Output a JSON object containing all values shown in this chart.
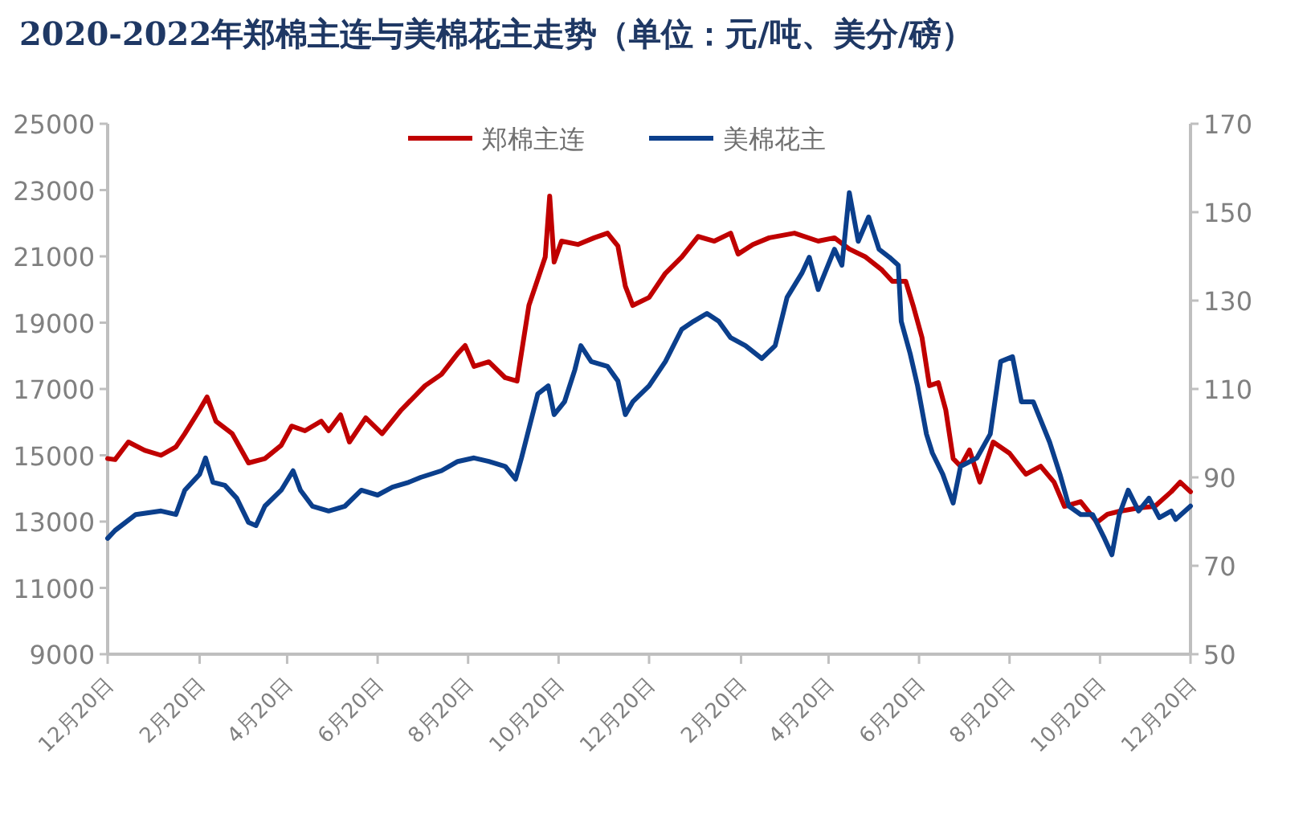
{
  "chart_data": {
    "type": "line",
    "title": "2020-2022年郑棉主连与美棉花主走势（单位：元/吨、美分/磅）",
    "xlim": [
      "2020-12-20",
      "2022-12-20"
    ],
    "xticks": [
      {
        "value": "2020-12-20",
        "label": "12月20日"
      },
      {
        "value": "2021-02-20",
        "label": "2月20日"
      },
      {
        "value": "2021-04-20",
        "label": "4月20日"
      },
      {
        "value": "2021-06-20",
        "label": "6月20日"
      },
      {
        "value": "2021-08-20",
        "label": "8月20日"
      },
      {
        "value": "2021-10-20",
        "label": "10月20日"
      },
      {
        "value": "2021-12-20",
        "label": "12月20日"
      },
      {
        "value": "2022-02-20",
        "label": "2月20日"
      },
      {
        "value": "2022-04-20",
        "label": "4月20日"
      },
      {
        "value": "2022-06-20",
        "label": "6月20日"
      },
      {
        "value": "2022-08-20",
        "label": "8月20日"
      },
      {
        "value": "2022-10-20",
        "label": "10月20日"
      },
      {
        "value": "2022-12-20",
        "label": "12月20日"
      }
    ],
    "ylim": [
      9000,
      25000
    ],
    "yticks": [
      9000,
      11000,
      13000,
      15000,
      17000,
      19000,
      21000,
      23000,
      25000
    ],
    "y2lim": [
      50,
      170
    ],
    "y2ticks": [
      50,
      70,
      90,
      110,
      130,
      150,
      170
    ],
    "legend": "top",
    "grid": false,
    "line_style": "solid",
    "series": [
      {
        "name": "郑棉主连",
        "color": "#c00000",
        "axis": "y",
        "x": [
          "2020-12-20",
          "2020-12-25",
          "2021-01-03",
          "2021-01-14",
          "2021-01-25",
          "2021-02-04",
          "2021-02-10",
          "2021-02-20",
          "2021-02-25",
          "2021-03-03",
          "2021-03-14",
          "2021-03-25",
          "2021-04-05",
          "2021-04-16",
          "2021-04-23",
          "2021-05-02",
          "2021-05-13",
          "2021-05-18",
          "2021-05-26",
          "2021-06-01",
          "2021-06-12",
          "2021-06-23",
          "2021-07-06",
          "2021-07-22",
          "2021-08-02",
          "2021-08-13",
          "2021-08-18",
          "2021-08-24",
          "2021-09-03",
          "2021-09-14",
          "2021-09-22",
          "2021-09-30",
          "2021-10-11",
          "2021-10-14",
          "2021-10-17",
          "2021-10-22",
          "2021-11-02",
          "2021-11-13",
          "2021-11-22",
          "2021-11-29",
          "2021-12-04",
          "2021-12-09",
          "2021-12-20",
          "2021-12-31",
          "2022-01-11",
          "2022-01-22",
          "2022-02-02",
          "2022-02-13",
          "2022-02-18",
          "2022-02-28",
          "2022-03-11",
          "2022-03-28",
          "2022-04-13",
          "2022-04-24",
          "2022-05-04",
          "2022-05-15",
          "2022-05-26",
          "2022-06-02",
          "2022-06-11",
          "2022-06-16",
          "2022-06-22",
          "2022-06-27",
          "2022-07-03",
          "2022-07-08",
          "2022-07-13",
          "2022-07-18",
          "2022-07-24",
          "2022-07-31",
          "2022-08-09",
          "2022-08-20",
          "2022-08-31",
          "2022-09-10",
          "2022-09-19",
          "2022-09-26",
          "2022-10-07",
          "2022-10-18",
          "2022-10-25",
          "2022-11-02",
          "2022-11-15",
          "2022-11-26",
          "2022-12-07",
          "2022-12-13",
          "2022-12-20"
        ],
        "values": [
          14900,
          14870,
          15400,
          15150,
          15000,
          15250,
          15650,
          16370,
          16760,
          16030,
          15650,
          14770,
          14900,
          15300,
          15880,
          15740,
          16030,
          15740,
          16220,
          15400,
          16130,
          15650,
          16370,
          17100,
          17440,
          18070,
          18310,
          17680,
          17820,
          17340,
          17240,
          19520,
          20980,
          22820,
          20830,
          21460,
          21360,
          21560,
          21700,
          21310,
          20100,
          19520,
          19760,
          20490,
          20980,
          21600,
          21460,
          21700,
          21070,
          21360,
          21560,
          21700,
          21460,
          21560,
          21220,
          20980,
          20590,
          20250,
          20250,
          19520,
          18550,
          17100,
          17190,
          16370,
          14900,
          14670,
          15160,
          14190,
          15400,
          15060,
          14430,
          14670,
          14190,
          13460,
          13600,
          12980,
          13220,
          13310,
          13410,
          13460,
          13900,
          14190,
          13900
        ]
      },
      {
        "name": "美棉花主",
        "color": "#0b3f8c",
        "axis": "y2",
        "x": [
          "2020-12-20",
          "2020-12-25",
          "2021-01-08",
          "2021-01-25",
          "2021-02-04",
          "2021-02-10",
          "2021-02-20",
          "2021-02-24",
          "2021-03-01",
          "2021-03-09",
          "2021-03-17",
          "2021-03-25",
          "2021-03-30",
          "2021-04-05",
          "2021-04-16",
          "2021-04-24",
          "2021-04-29",
          "2021-05-07",
          "2021-05-18",
          "2021-05-29",
          "2021-06-09",
          "2021-06-20",
          "2021-06-30",
          "2021-07-11",
          "2021-07-19",
          "2021-08-02",
          "2021-08-13",
          "2021-08-24",
          "2021-09-03",
          "2021-09-14",
          "2021-09-21",
          "2021-09-25",
          "2021-10-06",
          "2021-10-13",
          "2021-10-17",
          "2021-10-24",
          "2021-10-31",
          "2021-11-04",
          "2021-11-11",
          "2021-11-22",
          "2021-11-29",
          "2021-12-04",
          "2021-12-09",
          "2021-12-20",
          "2021-12-31",
          "2022-01-11",
          "2022-01-19",
          "2022-01-28",
          "2022-02-05",
          "2022-02-13",
          "2022-02-23",
          "2022-03-06",
          "2022-03-15",
          "2022-03-23",
          "2022-04-02",
          "2022-04-07",
          "2022-04-13",
          "2022-04-24",
          "2022-04-29",
          "2022-05-04",
          "2022-05-10",
          "2022-05-17",
          "2022-05-24",
          "2022-05-31",
          "2022-06-06",
          "2022-06-08",
          "2022-06-14",
          "2022-06-19",
          "2022-06-25",
          "2022-06-29",
          "2022-07-06",
          "2022-07-13",
          "2022-07-18",
          "2022-07-29",
          "2022-08-07",
          "2022-08-14",
          "2022-08-22",
          "2022-08-28",
          "2022-09-05",
          "2022-09-16",
          "2022-09-23",
          "2022-09-29",
          "2022-10-07",
          "2022-10-15",
          "2022-10-23",
          "2022-10-28",
          "2022-11-02",
          "2022-11-08",
          "2022-11-15",
          "2022-11-22",
          "2022-11-29",
          "2022-12-07",
          "2022-12-10",
          "2022-12-20"
        ],
        "values": [
          76.2,
          78,
          81.6,
          82.4,
          81.6,
          87.1,
          90.7,
          94.4,
          88.9,
          88.2,
          85.3,
          79.8,
          79.1,
          83.5,
          87.1,
          91.5,
          87.1,
          83.5,
          82.4,
          83.5,
          87.1,
          86,
          87.8,
          88.9,
          90,
          91.5,
          93.6,
          94.4,
          93.6,
          92.5,
          89.6,
          94.4,
          108.9,
          110.7,
          104.2,
          107.1,
          114.4,
          119.8,
          116.2,
          115.1,
          111.8,
          104.2,
          107.1,
          110.7,
          116.2,
          123.5,
          125.3,
          127.1,
          125.3,
          121.6,
          119.8,
          116.9,
          119.8,
          130.7,
          136.2,
          139.8,
          132.5,
          141.6,
          138,
          154.4,
          143.4,
          148.9,
          141.6,
          139.8,
          138,
          125.3,
          118,
          110.7,
          99.8,
          95.5,
          90.7,
          84.2,
          92.5,
          94.4,
          99.8,
          116.2,
          117.3,
          107.1,
          107.1,
          98,
          90.7,
          83.5,
          81.6,
          81.6,
          76.2,
          72.5,
          81.6,
          87.1,
          82.4,
          85.3,
          80.9,
          82.4,
          80.5,
          83.5
        ]
      }
    ]
  }
}
